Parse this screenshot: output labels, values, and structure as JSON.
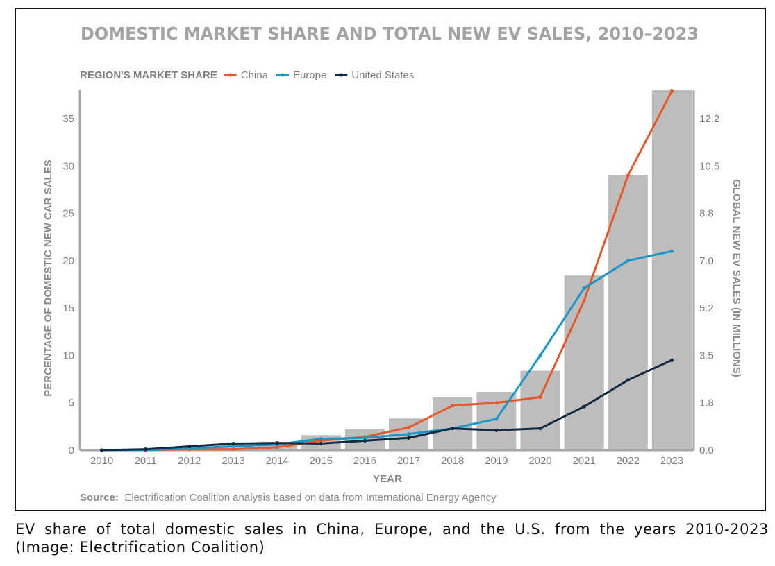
{
  "chart_data": {
    "type": "bar",
    "title": "DOMESTIC MARKET SHARE AND TOTAL NEW EV SALES, 2010–2023",
    "xlabel": "YEAR",
    "ylabel": "PERCENTAGE OF DOMESTIC NEW CAR SALES",
    "y2label": "GLOBAL NEW EV SALES (IN MILLIONS)",
    "legend_title": "REGION'S MARKET SHARE",
    "legend_position": "top-left",
    "categories": [
      "2010",
      "2011",
      "2012",
      "2013",
      "2014",
      "2015",
      "2016",
      "2017",
      "2018",
      "2019",
      "2020",
      "2021",
      "2022",
      "2023"
    ],
    "ylim": [
      0,
      38
    ],
    "y_ticks": [
      0,
      5,
      10,
      15,
      20,
      25,
      30,
      35
    ],
    "y2lim": [
      0,
      13.6
    ],
    "y2_ticks": [
      "0.0",
      "1.8",
      "3.5",
      "5.2",
      "7.0",
      "8.8",
      "10.5",
      "12.2"
    ],
    "bars": {
      "name": "Global new EV sales",
      "color": "#bdbdbd",
      "values": [
        0.01,
        0.05,
        0.13,
        0.21,
        0.32,
        0.57,
        0.79,
        1.2,
        2.0,
        2.2,
        3.0,
        6.6,
        10.4,
        14.0
      ]
    },
    "series": [
      {
        "name": "China",
        "color": "#e8582a",
        "values": [
          0.0,
          0.0,
          0.1,
          0.1,
          0.3,
          1.0,
          1.4,
          2.4,
          4.7,
          5.0,
          5.6,
          15.8,
          29.0,
          37.9
        ]
      },
      {
        "name": "Europe",
        "color": "#1a96c8",
        "values": [
          0.0,
          0.0,
          0.2,
          0.4,
          0.6,
          1.2,
          1.3,
          1.7,
          2.3,
          3.3,
          10.0,
          17.1,
          20.0,
          21.0
        ]
      },
      {
        "name": "United States",
        "color": "#122a42",
        "values": [
          0.0,
          0.1,
          0.4,
          0.7,
          0.75,
          0.7,
          1.0,
          1.3,
          2.3,
          2.1,
          2.3,
          4.6,
          7.4,
          9.5
        ]
      }
    ],
    "source_label": "Source:",
    "source_text": "Electrification Coalition analysis based on data from International Energy Agency"
  },
  "caption": "EV share of total domestic sales in China, Europe, and the U.S. from the years 2010-2023 (Image: Electrification Coalition)"
}
